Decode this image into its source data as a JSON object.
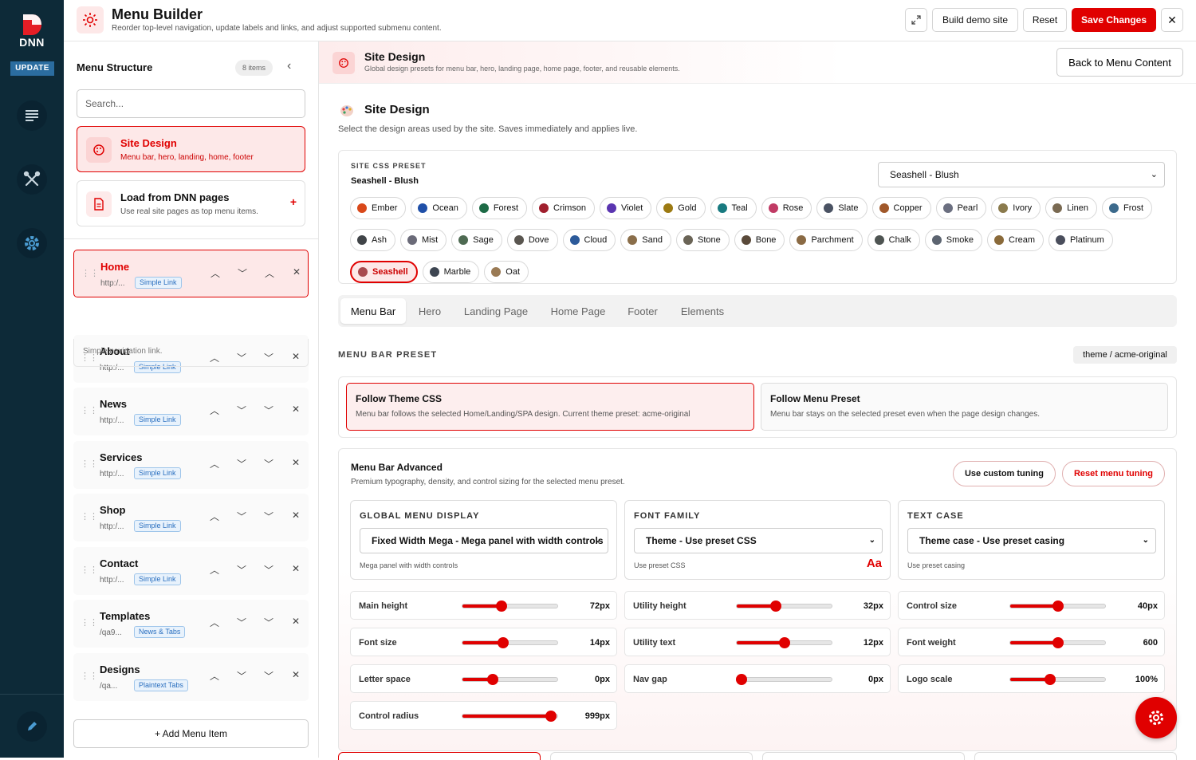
{
  "rail": {
    "logo_text": "DNN",
    "update_label": "UPDATE",
    "items": [
      {
        "icon": "document-list-icon"
      },
      {
        "icon": "tools-icon"
      },
      {
        "icon": "gear-icon"
      }
    ],
    "bottom_icon": "pencil-icon"
  },
  "header": {
    "title": "Menu Builder",
    "subtitle": "Reorder top-level navigation, update labels and links, and adjust supported submenu content.",
    "build_demo_label": "Build demo site",
    "reset_label": "Reset",
    "save_label": "Save Changes"
  },
  "sidebar": {
    "title": "Menu Structure",
    "count": "8 items",
    "search_placeholder": "Search...",
    "special": [
      {
        "title": "Site Design",
        "subtitle": "Menu bar, hero, landing, home, footer",
        "selected": true
      },
      {
        "title": "Load from DNN pages",
        "subtitle": "Use real site pages as top menu items."
      }
    ],
    "items": [
      {
        "name": "Home",
        "url": "http:/...",
        "tag": "Simple Link",
        "hint": "Simple navigation link."
      },
      {
        "name": "About",
        "url": "http:/...",
        "tag": "Simple Link"
      },
      {
        "name": "News",
        "url": "http:/...",
        "tag": "Simple Link"
      },
      {
        "name": "Services",
        "url": "http:/...",
        "tag": "Simple Link"
      },
      {
        "name": "Shop",
        "url": "http:/...",
        "tag": "Simple Link"
      },
      {
        "name": "Contact",
        "url": "http:/...",
        "tag": "Simple Link"
      },
      {
        "name": "Templates",
        "url": "/qa9...",
        "tag": "News & Tabs"
      },
      {
        "name": "Designs",
        "url": "/qa...",
        "tag": "Plaintext Tabs"
      }
    ],
    "add_label": "+ Add Menu Item"
  },
  "main": {
    "head_title": "Site Design",
    "head_subtitle": "Global design presets for menu bar, hero, landing page, home page, footer, and reusable elements.",
    "back_label": "Back to Menu Content",
    "section_title": "Site Design",
    "section_subtitle": "Select the design areas used by the site. Saves immediately and applies live.",
    "preset": {
      "label": "SITE CSS PRESET",
      "current": "Seashell - Blush",
      "select_value": "Seashell - Blush",
      "chips": [
        {
          "name": "Ember",
          "color": "#d9481a"
        },
        {
          "name": "Ocean",
          "color": "#1f4fa8"
        },
        {
          "name": "Forest",
          "color": "#1d6b46"
        },
        {
          "name": "Crimson",
          "color": "#a01f2d"
        },
        {
          "name": "Violet",
          "color": "#5a35b0"
        },
        {
          "name": "Gold",
          "color": "#9c7a12"
        },
        {
          "name": "Teal",
          "color": "#187a80"
        },
        {
          "name": "Rose",
          "color": "#c03a64"
        },
        {
          "name": "Slate",
          "color": "#4a5263"
        },
        {
          "name": "Copper",
          "color": "#a0582a"
        },
        {
          "name": "Pearl",
          "color": "#6b6f80"
        },
        {
          "name": "Ivory",
          "color": "#8a7a4c"
        },
        {
          "name": "Linen",
          "color": "#7a6a52"
        },
        {
          "name": "Frost",
          "color": "#3c6a8c"
        },
        {
          "name": "Ash",
          "color": "#404448"
        },
        {
          "name": "Mist",
          "color": "#6a6a78"
        },
        {
          "name": "Sage",
          "color": "#4e6a52"
        },
        {
          "name": "Dove",
          "color": "#5a5650"
        },
        {
          "name": "Cloud",
          "color": "#2c5a9a"
        },
        {
          "name": "Sand",
          "color": "#8a6e4a"
        },
        {
          "name": "Stone",
          "color": "#6a6456"
        },
        {
          "name": "Bone",
          "color": "#5a4a3a"
        },
        {
          "name": "Parchment",
          "color": "#8a6a44"
        },
        {
          "name": "Chalk",
          "color": "#4e5452"
        },
        {
          "name": "Smoke",
          "color": "#5c6470"
        },
        {
          "name": "Cream",
          "color": "#8a6a3a"
        },
        {
          "name": "Platinum",
          "color": "#4a4e5c"
        },
        {
          "name": "Seashell",
          "color": "#a84a4e",
          "selected": true
        },
        {
          "name": "Marble",
          "color": "#3e4652"
        },
        {
          "name": "Oat",
          "color": "#9a7a54"
        }
      ]
    },
    "tabs": [
      "Menu Bar",
      "Hero",
      "Landing Page",
      "Home Page",
      "Footer",
      "Elements"
    ],
    "active_tab": "Menu Bar",
    "menu_bar_preset_label": "MENU BAR PRESET",
    "theme_badge": "theme / acme-original",
    "modes": [
      {
        "title": "Follow Theme CSS",
        "subtitle": "Menu bar follows the selected Home/Landing/SPA design. Current theme preset: acme-original",
        "selected": true
      },
      {
        "title": "Follow Menu Preset",
        "subtitle": "Menu bar stays on the selected preset even when the page design changes."
      }
    ],
    "advanced": {
      "title": "Menu Bar Advanced",
      "subtitle": "Premium typography, density, and control sizing for the selected menu preset.",
      "custom_label": "Use custom tuning",
      "reset_label": "Reset menu tuning",
      "cards": [
        {
          "heading": "GLOBAL MENU DISPLAY",
          "value": "Fixed Width Mega - Mega panel with width controls",
          "hint": "Mega panel with width controls"
        },
        {
          "heading": "FONT FAMILY",
          "value": "Theme - Use preset CSS",
          "hint": "Use preset CSS",
          "sample": "Aa"
        },
        {
          "heading": "TEXT CASE",
          "value": "Theme case - Use preset casing",
          "hint": "Use preset casing"
        }
      ],
      "sliders": [
        {
          "label": "Main height",
          "value": "72px",
          "fraction": 0.41
        },
        {
          "label": "Utility height",
          "value": "32px",
          "fraction": 0.41
        },
        {
          "label": "Control size",
          "value": "40px",
          "fraction": 0.5
        },
        {
          "label": "Font size",
          "value": "14px",
          "fraction": 0.43
        },
        {
          "label": "Utility text",
          "value": "12px",
          "fraction": 0.5
        },
        {
          "label": "Font weight",
          "value": "600",
          "fraction": 0.5
        },
        {
          "label": "Letter space",
          "value": "0px",
          "fraction": 0.32
        },
        {
          "label": "Nav gap",
          "value": "0px",
          "fraction": 0.05
        },
        {
          "label": "Logo scale",
          "value": "100%",
          "fraction": 0.42
        },
        {
          "label": "Control radius",
          "value": "999px",
          "fraction": 0.93
        }
      ]
    }
  }
}
